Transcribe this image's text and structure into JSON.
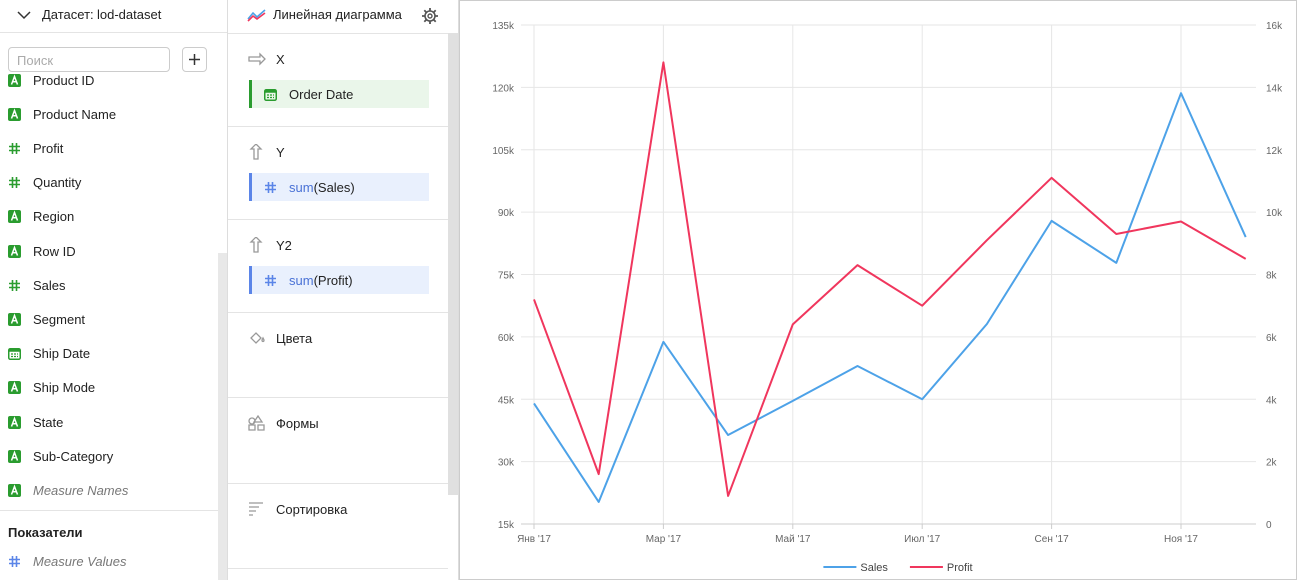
{
  "dataset_panel": {
    "label": "Датасет:",
    "dataset": "lod-dataset",
    "search_placeholder": "Поиск",
    "fields": [
      {
        "name": "Product ID",
        "kind": "dimension"
      },
      {
        "name": "Product Name",
        "kind": "dimension"
      },
      {
        "name": "Profit",
        "kind": "measure"
      },
      {
        "name": "Quantity",
        "kind": "measure"
      },
      {
        "name": "Region",
        "kind": "dimension"
      },
      {
        "name": "Row ID",
        "kind": "dimension"
      },
      {
        "name": "Sales",
        "kind": "measure"
      },
      {
        "name": "Segment",
        "kind": "dimension"
      },
      {
        "name": "Ship Date",
        "kind": "date"
      },
      {
        "name": "Ship Mode",
        "kind": "dimension"
      },
      {
        "name": "State",
        "kind": "dimension"
      },
      {
        "name": "Sub-Category",
        "kind": "dimension"
      },
      {
        "name": "Measure Names",
        "kind": "dimension",
        "italic": true
      }
    ],
    "measures_title": "Показатели",
    "measures": [
      {
        "name": "Measure Values",
        "kind": "pseudo-measure",
        "italic": true
      }
    ]
  },
  "wizard": {
    "chart_type": "Линейная диаграмма",
    "sections": [
      {
        "title": "X",
        "icon": "x",
        "items": [
          {
            "text": "Order Date",
            "kind": "date"
          }
        ]
      },
      {
        "title": "Y",
        "icon": "y",
        "items": [
          {
            "func": "sum",
            "arg": "(Sales)",
            "kind": "measure"
          }
        ]
      },
      {
        "title": "Y2",
        "icon": "y",
        "items": [
          {
            "func": "sum",
            "arg": "(Profit)",
            "kind": "measure"
          }
        ]
      },
      {
        "title": "Цвета",
        "icon": "color",
        "items": []
      },
      {
        "title": "Формы",
        "icon": "shape",
        "items": []
      },
      {
        "title": "Сортировка",
        "icon": "sort",
        "items": []
      }
    ]
  },
  "chart_data": {
    "type": "line",
    "categories": [
      "Янв '17",
      null,
      "Мар '17",
      null,
      "Май '17",
      null,
      "Июл '17",
      null,
      "Сен '17",
      null,
      "Ноя '17",
      null
    ],
    "series": [
      {
        "name": "Sales",
        "color": "#4da2e8",
        "values": [
          44000,
          20300,
          58800,
          36400,
          44600,
          53000,
          45000,
          63100,
          87900,
          77800,
          118600,
          84000
        ]
      },
      {
        "name": "Profit",
        "color": "#f0365d",
        "axis": "y2",
        "values": [
          7200,
          1600,
          14800,
          900,
          6400,
          8300,
          7000,
          9100,
          11100,
          9300,
          9700,
          8500
        ]
      }
    ],
    "ylim": [
      15000,
      135000
    ],
    "yticks": [
      {
        "value": 15000,
        "label": "15k"
      },
      {
        "value": 30000,
        "label": "30k"
      },
      {
        "value": 45000,
        "label": "45k"
      },
      {
        "value": 60000,
        "label": "60k"
      },
      {
        "value": 75000,
        "label": "75k"
      },
      {
        "value": 90000,
        "label": "90k"
      },
      {
        "value": 105000,
        "label": "105k"
      },
      {
        "value": 120000,
        "label": "120k"
      },
      {
        "value": 135000,
        "label": "135k"
      }
    ],
    "y2lim": [
      0,
      16000
    ],
    "y2ticks": [
      0,
      {
        "value": 2000,
        "label": "2k"
      },
      {
        "value": 4000,
        "label": "4k"
      },
      {
        "value": 6000,
        "label": "6k"
      },
      {
        "value": 8000,
        "label": "8k"
      },
      {
        "value": 10000,
        "label": "10k"
      },
      {
        "value": 12000,
        "label": "12k"
      },
      {
        "value": 14000,
        "label": "14k"
      },
      {
        "value": 16000,
        "label": "16k"
      }
    ],
    "grid": true,
    "legend": "bottom"
  }
}
